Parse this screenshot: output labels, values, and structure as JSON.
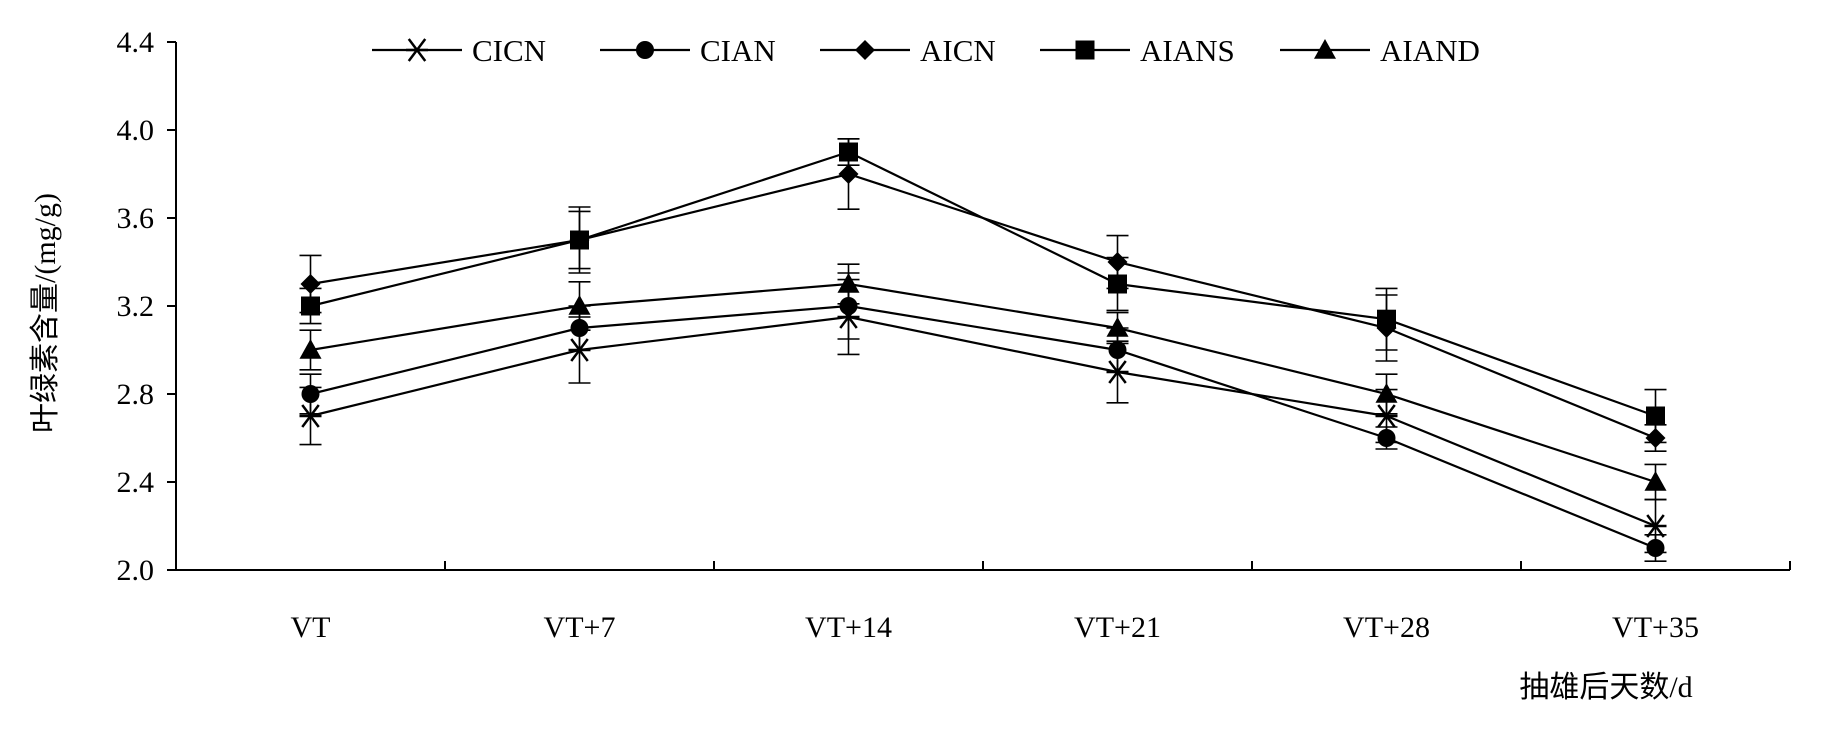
{
  "chart_data": {
    "type": "line",
    "title": "",
    "xlabel": "抽雄后天数/d",
    "ylabel": "叶绿素含量/(mg/g)",
    "categories": [
      "VT",
      "VT+7",
      "VT+14",
      "VT+21",
      "VT+28",
      "VT+35"
    ],
    "ylim": [
      2.0,
      4.4
    ],
    "yticks": [
      "2.0",
      "2.4",
      "2.8",
      "3.2",
      "3.6",
      "4.0",
      "4.4"
    ],
    "grid": false,
    "legend_position": "top",
    "series": [
      {
        "name": "CICN",
        "marker": "asterisk",
        "values": [
          2.7,
          3.0,
          3.15,
          2.9,
          2.7,
          2.2
        ],
        "errors": [
          0.13,
          0.15,
          0.17,
          0.14,
          0.12,
          0.12
        ]
      },
      {
        "name": "CIAN",
        "marker": "circle",
        "values": [
          2.8,
          3.1,
          3.2,
          3.0,
          2.6,
          2.1
        ],
        "errors": [
          0.09,
          0.1,
          0.15,
          0.1,
          0.05,
          0.06
        ]
      },
      {
        "name": "AICN",
        "marker": "diamond",
        "values": [
          3.3,
          3.5,
          3.8,
          3.4,
          3.1,
          2.6
        ],
        "errors": [
          0.13,
          0.13,
          0.16,
          0.12,
          0.15,
          0.06
        ]
      },
      {
        "name": "AIANS",
        "marker": "square",
        "values": [
          3.2,
          3.5,
          3.9,
          3.3,
          3.14,
          2.7
        ],
        "errors": [
          0.08,
          0.15,
          0.06,
          0.12,
          0.14,
          0.12
        ]
      },
      {
        "name": "AIAND",
        "marker": "triangle",
        "values": [
          3.0,
          3.2,
          3.3,
          3.1,
          2.8,
          2.4
        ],
        "errors": [
          0.09,
          0.11,
          0.09,
          0.07,
          0.09,
          0.08
        ]
      }
    ]
  }
}
